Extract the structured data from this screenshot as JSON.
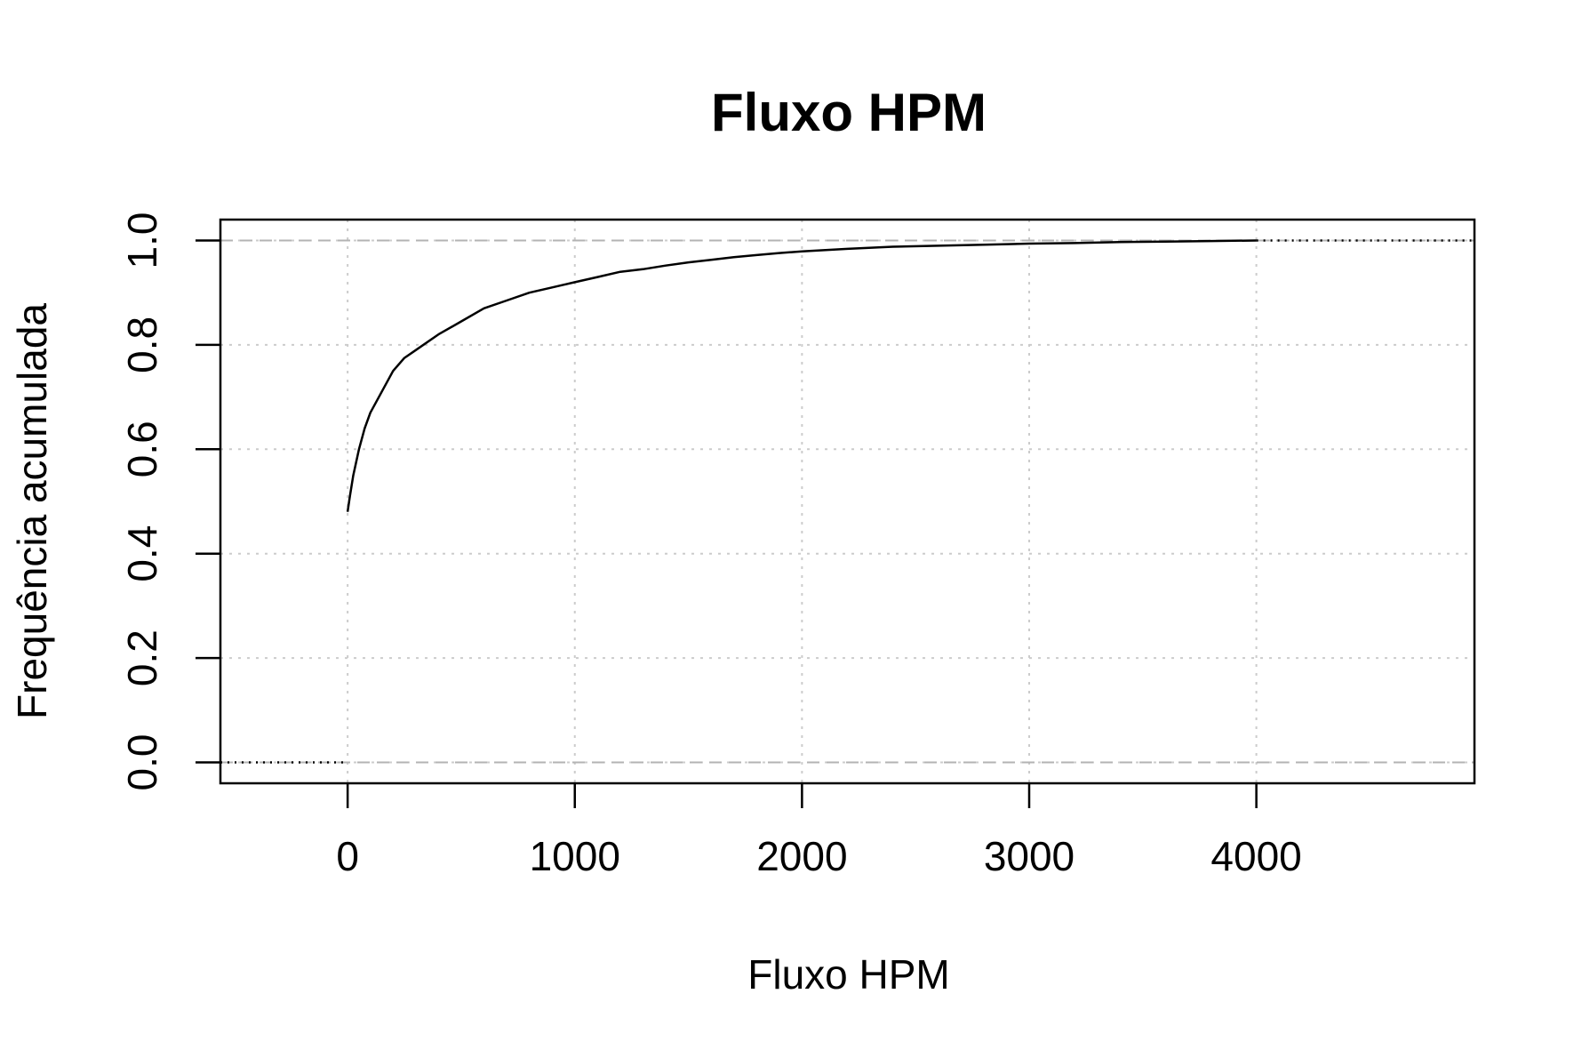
{
  "chart_data": {
    "type": "line",
    "title": "Fluxo HPM",
    "xlabel": "Fluxo HPM",
    "ylabel": "Frequência acumulada",
    "xlim": [
      -560,
      4960
    ],
    "ylim": [
      -0.04,
      1.04
    ],
    "x_ticks": [
      0,
      1000,
      2000,
      3000,
      4000
    ],
    "x_tick_labels": [
      "0",
      "1000",
      "2000",
      "3000",
      "4000"
    ],
    "y_ticks": [
      0,
      0.2,
      0.4,
      0.6,
      0.8,
      1.0
    ],
    "y_tick_labels": [
      "0.0",
      "0.2",
      "0.4",
      "0.6",
      "0.8",
      "1.0"
    ],
    "grid": true,
    "reference_lines": [
      0,
      1
    ],
    "colors": {
      "line": "#000000",
      "grid": "#cccccc",
      "reference": "#b3b3b3"
    },
    "series": [
      {
        "x": [
          0,
          10,
          25,
          50,
          75,
          100,
          150,
          200,
          250,
          300,
          400,
          500,
          600,
          700,
          800,
          900,
          1000,
          1100,
          1200,
          1300,
          1400,
          1500,
          1600,
          1700,
          1800,
          1900,
          2000,
          2200,
          2400,
          2600,
          2800,
          3000,
          3200,
          3400,
          3600,
          3800,
          4000
        ],
        "y": [
          0.48,
          0.51,
          0.55,
          0.6,
          0.64,
          0.67,
          0.71,
          0.75,
          0.775,
          0.79,
          0.82,
          0.845,
          0.87,
          0.885,
          0.9,
          0.91,
          0.92,
          0.93,
          0.94,
          0.945,
          0.952,
          0.958,
          0.963,
          0.968,
          0.972,
          0.976,
          0.979,
          0.984,
          0.988,
          0.99,
          0.992,
          0.994,
          0.995,
          0.997,
          0.998,
          0.999,
          1.0
        ]
      }
    ],
    "left_step": {
      "x": [
        -560,
        0
      ],
      "y": 0
    },
    "right_step": {
      "x": [
        4000,
        4960
      ],
      "y": 1
    }
  }
}
